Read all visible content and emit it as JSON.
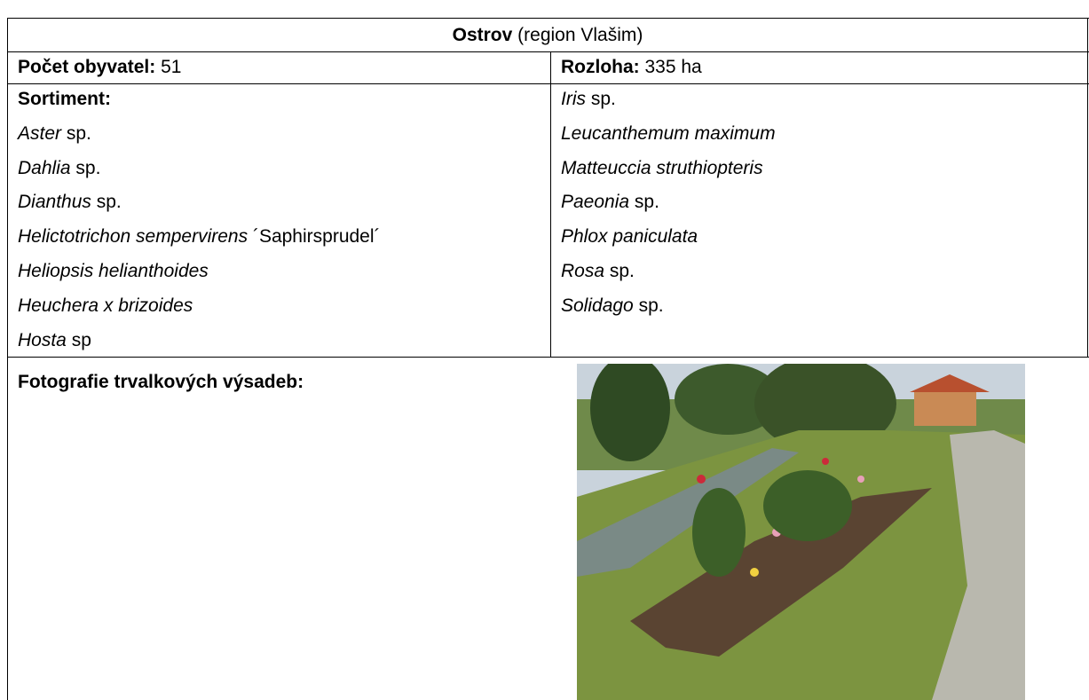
{
  "header": {
    "title_bold": "Ostrov",
    "title_rest": "(region Vlašim)"
  },
  "info": {
    "population_label": "Počet obyvatel:",
    "population": "51",
    "area_label": "Rozloha:",
    "area": "335 ha"
  },
  "assortment": {
    "label": "Sortiment:",
    "left": [
      {
        "italic": "Aster",
        "normal": "sp."
      },
      {
        "italic": "Dahlia",
        "normal": "sp."
      },
      {
        "italic": "Dianthus",
        "normal": "sp."
      },
      {
        "italic": "Helictotrichon sempervirens",
        "normal": "´Saphirsprudel´"
      },
      {
        "italic": "Heliopsis helianthoides"
      },
      {
        "italic": "Heuchera x brizoides"
      },
      {
        "italic": "Hosta",
        "normal": "sp"
      }
    ],
    "right": [
      {
        "italic": "Iris",
        "normal": "sp."
      },
      {
        "italic": "Leucanthemum maximum"
      },
      {
        "italic": "Matteuccia struthiopteris"
      },
      {
        "italic": "Paeonia",
        "normal": "sp."
      },
      {
        "italic": "Phlox paniculata"
      },
      {
        "italic": "Rosa",
        "normal": "sp."
      },
      {
        "italic": "Solidago",
        "normal": "sp."
      }
    ]
  },
  "photos": {
    "label": "Fotografie trvalkových výsadeb:"
  }
}
